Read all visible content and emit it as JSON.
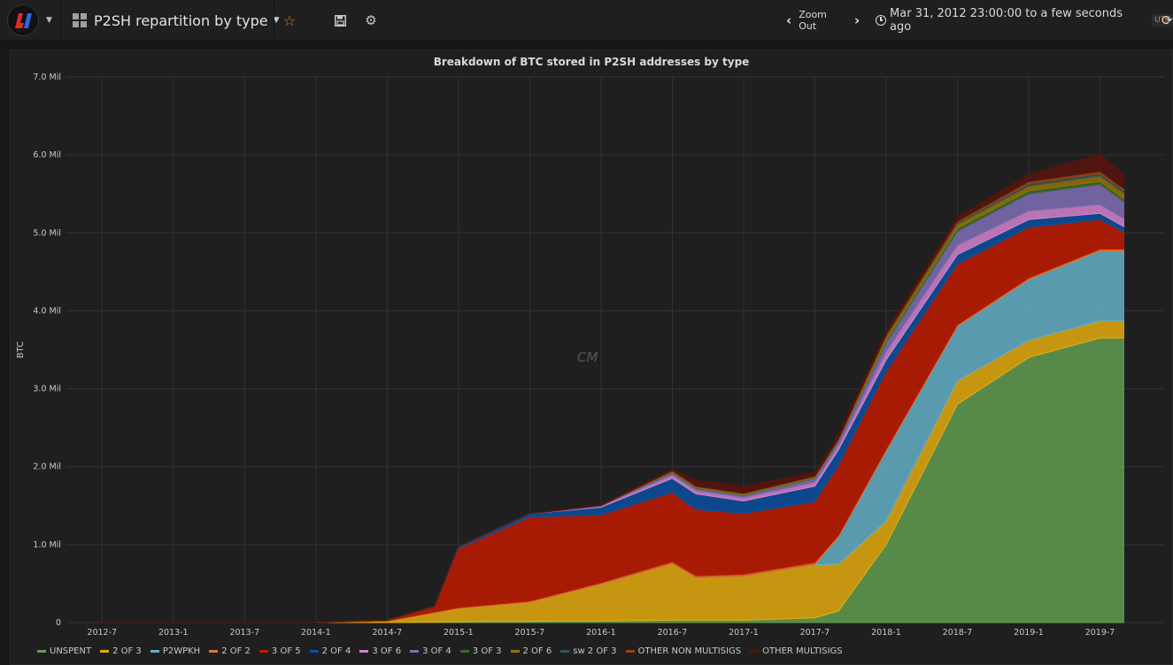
{
  "navbar": {
    "dashboard_title": "P2SH repartition by type",
    "zoom_out_label": "Zoom Out",
    "time_range": "Mar 31, 2012 23:00:00 to a few seconds ago",
    "timezone": "UTC"
  },
  "panel": {
    "title": "Breakdown of BTC stored in P2SH addresses by type",
    "watermark": "CM"
  },
  "chart_data": {
    "type": "area",
    "stacked": true,
    "title": "Breakdown of BTC stored in P2SH addresses by type",
    "xlabel": "",
    "ylabel": "BTC",
    "ylim": [
      0,
      7000000
    ],
    "yticks": [
      0,
      1000000,
      2000000,
      3000000,
      4000000,
      5000000,
      6000000,
      7000000
    ],
    "ytick_labels": [
      "0",
      "1.0 Mil",
      "2.0 Mil",
      "3.0 Mil",
      "4.0 Mil",
      "5.0 Mil",
      "6.0 Mil",
      "7.0 Mil"
    ],
    "xtick_labels": [
      "2012-7",
      "2013-1",
      "2013-7",
      "2014-1",
      "2014-7",
      "2015-1",
      "2015-7",
      "2016-1",
      "2016-7",
      "2017-1",
      "2017-7",
      "2018-1",
      "2018-7",
      "2019-1",
      "2019-7"
    ],
    "x": [
      "2012-7",
      "2013-1",
      "2013-7",
      "2014-1",
      "2014-7",
      "2014-11",
      "2015-1",
      "2015-7",
      "2016-1",
      "2016-7",
      "2016-9",
      "2017-1",
      "2017-7",
      "2017-9",
      "2018-1",
      "2018-7",
      "2019-1",
      "2019-7",
      "2019-9"
    ],
    "grid": true,
    "legend_position": "bottom",
    "series": [
      {
        "name": "UNSPENT",
        "color": "#629e51",
        "values": [
          0,
          0,
          0,
          0,
          0,
          5000,
          10000,
          15000,
          20000,
          30000,
          30000,
          30000,
          60000,
          150000,
          1000000,
          2800000,
          3400000,
          3650000,
          3650000
        ]
      },
      {
        "name": "2 OF 3",
        "color": "#e5ac0e",
        "values": [
          0,
          0,
          0,
          0,
          20000,
          120000,
          170000,
          240000,
          470000,
          720000,
          540000,
          560000,
          680000,
          600000,
          300000,
          300000,
          220000,
          220000,
          220000
        ]
      },
      {
        "name": "P2WPKH",
        "color": "#64b0c8",
        "values": [
          0,
          0,
          0,
          0,
          0,
          0,
          0,
          0,
          0,
          0,
          0,
          0,
          0,
          350000,
          900000,
          700000,
          780000,
          900000,
          900000
        ]
      },
      {
        "name": "2 OF 2",
        "color": "#e0752d",
        "values": [
          0,
          0,
          0,
          0,
          0,
          10000,
          10000,
          20000,
          20000,
          30000,
          30000,
          30000,
          30000,
          20000,
          20000,
          20000,
          20000,
          20000,
          20000
        ]
      },
      {
        "name": "3 OF 5",
        "color": "#bf1b00",
        "values": [
          0,
          0,
          0,
          0,
          10000,
          70000,
          760000,
          1080000,
          870000,
          890000,
          850000,
          780000,
          780000,
          900000,
          1000000,
          780000,
          650000,
          380000,
          220000
        ]
      },
      {
        "name": "2 OF 4",
        "color": "#0a50a1",
        "values": [
          0,
          0,
          0,
          0,
          0,
          0,
          20000,
          40000,
          100000,
          180000,
          200000,
          160000,
          200000,
          200000,
          150000,
          120000,
          100000,
          80000,
          70000
        ]
      },
      {
        "name": "3 OF 6",
        "color": "#d683ce",
        "values": [
          0,
          0,
          0,
          0,
          0,
          0,
          0,
          0,
          10000,
          40000,
          40000,
          40000,
          50000,
          50000,
          100000,
          120000,
          110000,
          110000,
          100000
        ]
      },
      {
        "name": "3 OF 4",
        "color": "#806eb7",
        "values": [
          0,
          0,
          0,
          0,
          0,
          0,
          0,
          0,
          10000,
          30000,
          30000,
          30000,
          50000,
          60000,
          120000,
          180000,
          220000,
          260000,
          220000
        ]
      },
      {
        "name": "3 OF 3",
        "color": "#3f6833",
        "values": [
          0,
          0,
          0,
          0,
          0,
          0,
          0,
          0,
          0,
          10000,
          10000,
          10000,
          10000,
          10000,
          30000,
          40000,
          40000,
          40000,
          40000
        ]
      },
      {
        "name": "2 OF 6",
        "color": "#967302",
        "values": [
          0,
          0,
          0,
          0,
          0,
          0,
          0,
          0,
          0,
          10000,
          10000,
          10000,
          10000,
          10000,
          40000,
          50000,
          60000,
          70000,
          70000
        ]
      },
      {
        "name": "sw 2 OF 3",
        "color": "#2f575e",
        "values": [
          0,
          0,
          0,
          0,
          0,
          0,
          0,
          0,
          0,
          0,
          0,
          0,
          0,
          0,
          10000,
          20000,
          30000,
          30000,
          30000
        ]
      },
      {
        "name": "OTHER NON MULTISIGS",
        "color": "#99440a",
        "values": [
          0,
          0,
          0,
          0,
          0,
          0,
          0,
          0,
          0,
          10000,
          10000,
          10000,
          10000,
          10000,
          20000,
          20000,
          30000,
          30000,
          30000
        ]
      },
      {
        "name": "OTHER MULTISIGS",
        "color": "#58140c",
        "values": [
          0,
          0,
          0,
          0,
          0,
          0,
          0,
          0,
          10000,
          20000,
          80000,
          90000,
          50000,
          50000,
          40000,
          50000,
          90000,
          220000,
          180000
        ]
      }
    ]
  }
}
